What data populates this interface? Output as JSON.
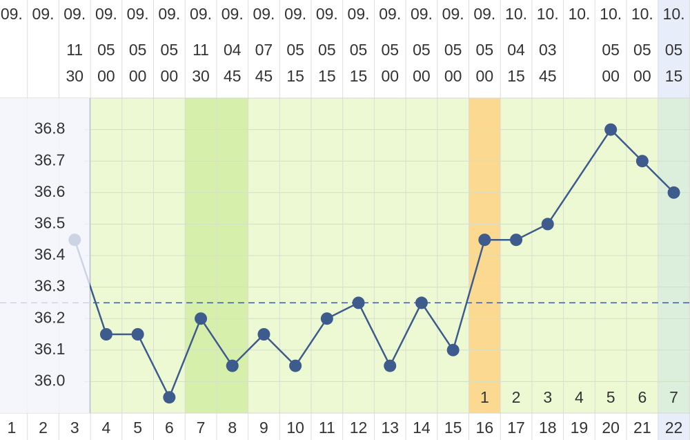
{
  "columns": [
    {
      "day": 1,
      "month": "09.",
      "color": "#cccccc"
    },
    {
      "day": 2,
      "month": "09.",
      "color": "#cccccc"
    },
    {
      "day": 3,
      "month": "09.",
      "hour": "11",
      "minute": "30",
      "color": "#f2b3b3"
    },
    {
      "day": 4,
      "month": "09.",
      "hour": "05",
      "minute": "00",
      "color": "#d0312d"
    },
    {
      "day": 5,
      "month": "09.",
      "hour": "05",
      "minute": "00",
      "color": "#333333"
    },
    {
      "day": 6,
      "month": "09.",
      "hour": "05",
      "minute": "00",
      "color": "#333333"
    },
    {
      "day": 7,
      "month": "09.",
      "hour": "11",
      "minute": "30",
      "color": "#333333"
    },
    {
      "day": 8,
      "month": "09.",
      "hour": "04",
      "minute": "45",
      "color": "#333333"
    },
    {
      "day": 9,
      "month": "09.",
      "hour": "07",
      "minute": "45",
      "color": "#333333"
    },
    {
      "day": 10,
      "month": "09.",
      "hour": "05",
      "minute": "15",
      "color": "#d0312d"
    },
    {
      "day": 11,
      "month": "09.",
      "hour": "05",
      "minute": "15",
      "color": "#d0312d"
    },
    {
      "day": 12,
      "month": "09.",
      "hour": "05",
      "minute": "15",
      "color": "#333333"
    },
    {
      "day": 13,
      "month": "09.",
      "hour": "05",
      "minute": "00",
      "color": "#333333"
    },
    {
      "day": 14,
      "month": "09.",
      "hour": "05",
      "minute": "00",
      "color": "#333333"
    },
    {
      "day": 15,
      "month": "09.",
      "hour": "05",
      "minute": "00",
      "color": "#333333"
    },
    {
      "day": 16,
      "month": "09.",
      "hour": "05",
      "minute": "00",
      "color": "#333333"
    },
    {
      "day": 17,
      "month": "10.",
      "hour": "04",
      "minute": "15",
      "color": "#d0312d"
    },
    {
      "day": 18,
      "month": "10.",
      "hour": "03",
      "minute": "45",
      "color": "#d0312d"
    },
    {
      "day": 19,
      "month": "10.",
      "color": "#333333"
    },
    {
      "day": 20,
      "month": "10.",
      "hour": "05",
      "minute": "00",
      "color": "#333333"
    },
    {
      "day": 21,
      "month": "10.",
      "hour": "05",
      "minute": "00",
      "color": "#333333"
    },
    {
      "day": 22,
      "month": "10.",
      "hour": "05",
      "minute": "15",
      "color": "#333333"
    }
  ],
  "chart_data": {
    "type": "line",
    "x": [
      3,
      4,
      5,
      6,
      7,
      8,
      9,
      10,
      11,
      12,
      13,
      14,
      15,
      16,
      17,
      18,
      20,
      21,
      22
    ],
    "values": [
      36.45,
      36.15,
      36.15,
      35.95,
      36.2,
      36.05,
      36.15,
      36.05,
      36.2,
      36.25,
      36.05,
      36.25,
      36.1,
      36.45,
      36.45,
      36.5,
      36.8,
      36.7,
      36.6
    ],
    "color": "#3d5b8c",
    "xlim": [
      0.5,
      22.5
    ],
    "ylim": [
      35.9,
      36.9
    ],
    "yticks": [
      {
        "value": 36,
        "label": "36.0"
      },
      36.1,
      36.2,
      36.3,
      36.4,
      36.5,
      36.6,
      36.7,
      36.8
    ],
    "grid": true,
    "coverline": 36.25,
    "bands": [
      {
        "from": 4,
        "to": 22,
        "color": "#ecf9d3"
      },
      {
        "from": 7,
        "to": 8,
        "color": "#d6f0ab"
      },
      {
        "from": 16,
        "to": 16,
        "color": "#fbd990"
      },
      {
        "from": 22,
        "to": 22,
        "color": "#dcefdc"
      }
    ],
    "phase": {
      "x": [
        16,
        17,
        18,
        19,
        20,
        21,
        22
      ],
      "labels": [
        1,
        2,
        3,
        4,
        5,
        6,
        7
      ]
    }
  }
}
